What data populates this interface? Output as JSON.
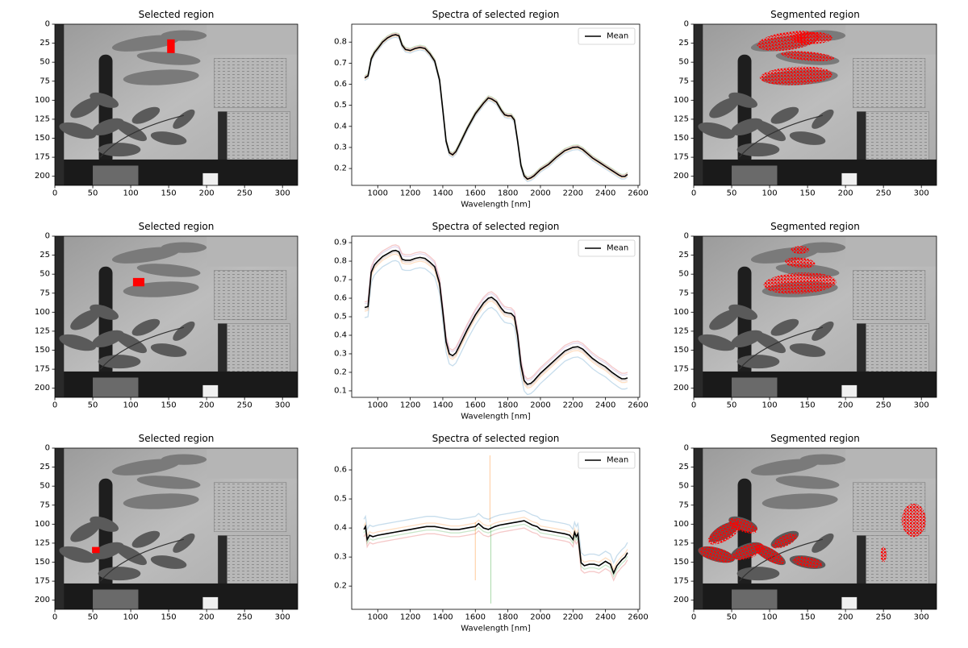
{
  "figure": {
    "rows": [
      {
        "selected": {
          "title": "Selected region",
          "xticks": [
            0,
            50,
            100,
            150,
            200,
            250,
            300
          ],
          "yticks": [
            0,
            25,
            50,
            75,
            100,
            125,
            150,
            175,
            200
          ],
          "xlim": [
            0,
            320
          ],
          "ylim_inverted": [
            0,
            212
          ],
          "selection_rect": {
            "x": [
              148,
              158
            ],
            "y": [
              20,
              38
            ],
            "color": "#ff0000"
          }
        },
        "spectra": {
          "title": "Spectra of selected region",
          "xlabel": "Wavelength [nm]",
          "legend": "Mean",
          "xlim": [
            840,
            2610
          ],
          "ylim": [
            0.12,
            0.885
          ],
          "xticks": [
            1000,
            1200,
            1400,
            1600,
            1800,
            2000,
            2200,
            2400,
            2600
          ],
          "yticks": [
            0.2,
            0.3,
            0.4,
            0.5,
            0.6,
            0.7,
            0.8
          ],
          "mean_x": [
            920,
            940,
            960,
            980,
            1000,
            1030,
            1060,
            1090,
            1110,
            1130,
            1150,
            1170,
            1200,
            1230,
            1260,
            1290,
            1320,
            1350,
            1380,
            1400,
            1420,
            1440,
            1460,
            1480,
            1500,
            1550,
            1600,
            1650,
            1680,
            1700,
            1730,
            1760,
            1780,
            1800,
            1820,
            1840,
            1860,
            1880,
            1900,
            1920,
            1940,
            1960,
            1980,
            2000,
            2050,
            2100,
            2150,
            2200,
            2230,
            2260,
            2290,
            2320,
            2360,
            2400,
            2440,
            2480,
            2500,
            2520,
            2535
          ],
          "mean_y": [
            0.63,
            0.64,
            0.72,
            0.75,
            0.77,
            0.8,
            0.82,
            0.832,
            0.835,
            0.83,
            0.785,
            0.765,
            0.76,
            0.77,
            0.775,
            0.77,
            0.745,
            0.71,
            0.62,
            0.48,
            0.33,
            0.275,
            0.265,
            0.28,
            0.31,
            0.39,
            0.46,
            0.51,
            0.535,
            0.53,
            0.515,
            0.475,
            0.455,
            0.45,
            0.45,
            0.43,
            0.33,
            0.215,
            0.165,
            0.15,
            0.155,
            0.165,
            0.18,
            0.195,
            0.22,
            0.255,
            0.285,
            0.3,
            0.302,
            0.29,
            0.27,
            0.25,
            0.23,
            0.21,
            0.19,
            0.17,
            0.162,
            0.163,
            0.172
          ],
          "band_offsets": [
            [
              -0.012,
              "#1f77b4"
            ],
            [
              0.01,
              "#2ca02c"
            ],
            [
              -0.006,
              "#ff7f0e"
            ],
            [
              0.006,
              "#d62728"
            ]
          ]
        },
        "segmented": {
          "title": "Segmented region",
          "xticks": [
            0,
            50,
            100,
            150,
            200,
            250,
            300
          ],
          "yticks": [
            0,
            25,
            50,
            75,
            100,
            125,
            150,
            175,
            200
          ],
          "xlim": [
            0,
            320
          ],
          "ylim_inverted": [
            0,
            212
          ],
          "overlay_color": "#ff0000"
        }
      },
      {
        "selected": {
          "title": "Selected region",
          "xticks": [
            0,
            50,
            100,
            150,
            200,
            250,
            300
          ],
          "yticks": [
            0,
            25,
            50,
            75,
            100,
            125,
            150,
            175,
            200
          ],
          "xlim": [
            0,
            320
          ],
          "ylim_inverted": [
            0,
            212
          ],
          "selection_rect": {
            "x": [
              103,
              118
            ],
            "y": [
              55,
              66
            ],
            "color": "#ff0000"
          }
        },
        "spectra": {
          "title": "Spectra of selected region",
          "xlabel": "Wavelength [nm]",
          "legend": "Mean",
          "xlim": [
            840,
            2610
          ],
          "ylim": [
            0.065,
            0.935
          ],
          "xticks": [
            1000,
            1200,
            1400,
            1600,
            1800,
            2000,
            2200,
            2400,
            2600
          ],
          "yticks": [
            0.1,
            0.2,
            0.3,
            0.4,
            0.5,
            0.6,
            0.7,
            0.8,
            0.9
          ],
          "mean_x": [
            920,
            940,
            960,
            980,
            1000,
            1030,
            1060,
            1090,
            1110,
            1130,
            1150,
            1170,
            1200,
            1230,
            1260,
            1290,
            1320,
            1350,
            1380,
            1400,
            1420,
            1440,
            1460,
            1480,
            1500,
            1550,
            1600,
            1650,
            1680,
            1700,
            1730,
            1760,
            1780,
            1800,
            1820,
            1840,
            1860,
            1880,
            1900,
            1920,
            1940,
            1960,
            1980,
            2000,
            2050,
            2100,
            2150,
            2200,
            2230,
            2260,
            2290,
            2320,
            2360,
            2400,
            2440,
            2480,
            2500,
            2520,
            2535
          ],
          "mean_y": [
            0.55,
            0.555,
            0.74,
            0.78,
            0.8,
            0.825,
            0.84,
            0.855,
            0.858,
            0.85,
            0.81,
            0.805,
            0.805,
            0.815,
            0.82,
            0.815,
            0.795,
            0.77,
            0.68,
            0.53,
            0.365,
            0.3,
            0.29,
            0.305,
            0.34,
            0.43,
            0.51,
            0.575,
            0.6,
            0.605,
            0.585,
            0.545,
            0.525,
            0.52,
            0.518,
            0.5,
            0.4,
            0.24,
            0.155,
            0.135,
            0.14,
            0.155,
            0.175,
            0.195,
            0.235,
            0.275,
            0.315,
            0.335,
            0.338,
            0.325,
            0.3,
            0.275,
            0.25,
            0.23,
            0.2,
            0.175,
            0.165,
            0.165,
            0.17
          ],
          "band_offsets": [
            [
              -0.055,
              "#1f77b4"
            ],
            [
              0.03,
              "#d62728"
            ],
            [
              -0.02,
              "#ff7f0e"
            ],
            [
              0.02,
              "#9467bd"
            ],
            [
              -0.01,
              "#8c564b"
            ]
          ]
        },
        "segmented": {
          "title": "Segmented region",
          "xticks": [
            0,
            50,
            100,
            150,
            200,
            250,
            300
          ],
          "yticks": [
            0,
            25,
            50,
            75,
            100,
            125,
            150,
            175,
            200
          ],
          "xlim": [
            0,
            320
          ],
          "ylim_inverted": [
            0,
            212
          ],
          "overlay_color": "#ff0000"
        }
      },
      {
        "selected": {
          "title": "Selected region",
          "xticks": [
            0,
            50,
            100,
            150,
            200,
            250,
            300
          ],
          "yticks": [
            0,
            25,
            50,
            75,
            100,
            125,
            150,
            175,
            200
          ],
          "xlim": [
            0,
            320
          ],
          "ylim_inverted": [
            0,
            212
          ],
          "selection_rect": {
            "x": [
              49,
              59
            ],
            "y": [
              130,
              138
            ],
            "color": "#ff0000"
          }
        },
        "spectra": {
          "title": "Spectra of selected region",
          "xlabel": "Wavelength [nm]",
          "legend": "Mean",
          "xlim": [
            840,
            2610
          ],
          "ylim": [
            0.12,
            0.675
          ],
          "xticks": [
            1000,
            1200,
            1400,
            1600,
            1800,
            2000,
            2200,
            2400,
            2600
          ],
          "yticks": [
            0.2,
            0.3,
            0.4,
            0.5,
            0.6
          ],
          "mean_x": [
            915,
            925,
            935,
            950,
            970,
            1000,
            1050,
            1100,
            1150,
            1200,
            1250,
            1300,
            1350,
            1400,
            1450,
            1500,
            1550,
            1600,
            1620,
            1650,
            1680,
            1700,
            1720,
            1750,
            1800,
            1850,
            1900,
            1950,
            1980,
            2000,
            2050,
            2100,
            2150,
            2180,
            2200,
            2210,
            2220,
            2230,
            2240,
            2250,
            2270,
            2300,
            2330,
            2360,
            2400,
            2430,
            2450,
            2470,
            2500,
            2520,
            2535
          ],
          "mean_y": [
            0.395,
            0.405,
            0.36,
            0.375,
            0.37,
            0.375,
            0.38,
            0.385,
            0.39,
            0.395,
            0.4,
            0.405,
            0.405,
            0.4,
            0.395,
            0.395,
            0.4,
            0.405,
            0.415,
            0.4,
            0.395,
            0.4,
            0.405,
            0.41,
            0.415,
            0.42,
            0.425,
            0.41,
            0.405,
            0.395,
            0.39,
            0.385,
            0.38,
            0.375,
            0.36,
            0.385,
            0.37,
            0.38,
            0.33,
            0.28,
            0.27,
            0.275,
            0.275,
            0.27,
            0.285,
            0.275,
            0.245,
            0.27,
            0.29,
            0.3,
            0.315
          ],
          "band_offsets": [
            [
              0.035,
              "#1f77b4"
            ],
            [
              -0.025,
              "#d62728"
            ],
            [
              0.012,
              "#ff7f0e"
            ],
            [
              -0.012,
              "#2ca02c"
            ]
          ],
          "spikes": [
            {
              "x": 1600,
              "y": [
                0.22,
                0.42
              ],
              "color": "#ff7f0e"
            },
            {
              "x": 1690,
              "y": [
                0.65,
                0.42
              ],
              "color": "#ff7f0e"
            },
            {
              "x": 1695,
              "y": [
                0.14,
                0.41
              ],
              "color": "#2ca02c"
            }
          ]
        },
        "segmented": {
          "title": "Segmented region",
          "xticks": [
            0,
            50,
            100,
            150,
            200,
            250,
            300
          ],
          "yticks": [
            0,
            25,
            50,
            75,
            100,
            125,
            150,
            175,
            200
          ],
          "xlim": [
            0,
            320
          ],
          "ylim_inverted": [
            0,
            212
          ],
          "overlay_color": "#ff0000"
        }
      }
    ]
  },
  "chart_data": [
    {
      "type": "heatmap",
      "title": "Selected region",
      "xlim": [
        0,
        320
      ],
      "ylim": [
        212,
        0
      ],
      "highlight": {
        "x": [
          148,
          158
        ],
        "y": [
          20,
          38
        ]
      }
    },
    {
      "type": "line",
      "title": "Spectra of selected region",
      "xlabel": "Wavelength [nm]",
      "series": [
        {
          "name": "Mean"
        }
      ],
      "xlim": [
        840,
        2610
      ],
      "ylim": [
        0.12,
        0.885
      ],
      "legend": "top-right"
    },
    {
      "type": "heatmap",
      "title": "Segmented region",
      "xlim": [
        0,
        320
      ],
      "ylim": [
        212,
        0
      ]
    },
    {
      "type": "heatmap",
      "title": "Selected region",
      "xlim": [
        0,
        320
      ],
      "ylim": [
        212,
        0
      ],
      "highlight": {
        "x": [
          103,
          118
        ],
        "y": [
          55,
          66
        ]
      }
    },
    {
      "type": "line",
      "title": "Spectra of selected region",
      "xlabel": "Wavelength [nm]",
      "series": [
        {
          "name": "Mean"
        }
      ],
      "xlim": [
        840,
        2610
      ],
      "ylim": [
        0.065,
        0.935
      ],
      "legend": "top-right"
    },
    {
      "type": "heatmap",
      "title": "Segmented region",
      "xlim": [
        0,
        320
      ],
      "ylim": [
        212,
        0
      ]
    },
    {
      "type": "heatmap",
      "title": "Selected region",
      "xlim": [
        0,
        320
      ],
      "ylim": [
        212,
        0
      ],
      "highlight": {
        "x": [
          49,
          59
        ],
        "y": [
          130,
          138
        ]
      }
    },
    {
      "type": "line",
      "title": "Spectra of selected region",
      "xlabel": "Wavelength [nm]",
      "series": [
        {
          "name": "Mean"
        }
      ],
      "xlim": [
        840,
        2610
      ],
      "ylim": [
        0.12,
        0.675
      ],
      "legend": "top-right"
    },
    {
      "type": "heatmap",
      "title": "Segmented region",
      "xlim": [
        0,
        320
      ],
      "ylim": [
        212,
        0
      ]
    }
  ]
}
